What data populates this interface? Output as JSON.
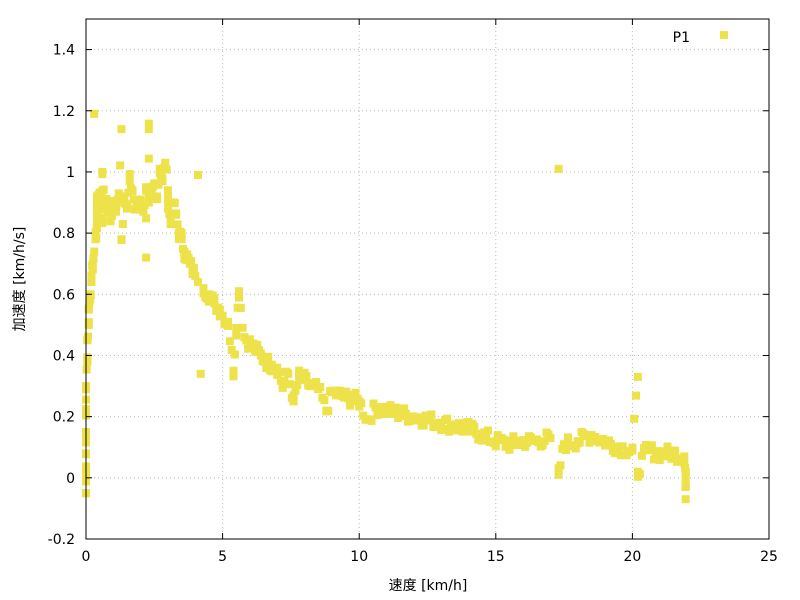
{
  "chart_data": {
    "type": "scatter",
    "title": "",
    "xlabel": "速度 [km/h]",
    "ylabel": "加速度 [km/h/s]",
    "xlim": [
      0,
      25
    ],
    "ylim": [
      -0.2,
      1.5
    ],
    "xticks": [
      "0",
      "5",
      "10",
      "15",
      "20",
      "25"
    ],
    "yticks": [
      "-0.2",
      "0",
      "0.2",
      "0.4",
      "0.6",
      "0.8",
      "1",
      "1.2",
      "1.4"
    ],
    "grid": true,
    "legend": {
      "position": "top-right",
      "entries": [
        "P1"
      ]
    },
    "series": [
      {
        "name": "P1",
        "color": "#ede24a",
        "marker": "square",
        "points": [
          [
            0.0,
            -0.05
          ],
          [
            0.0,
            0.02
          ],
          [
            0.0,
            0.08
          ],
          [
            0.0,
            0.15
          ],
          [
            0.0,
            0.22
          ],
          [
            0.0,
            0.3
          ],
          [
            0.05,
            0.38
          ],
          [
            0.05,
            0.45
          ],
          [
            0.1,
            0.5
          ],
          [
            0.1,
            0.55
          ],
          [
            0.15,
            0.6
          ],
          [
            0.2,
            0.64
          ],
          [
            0.25,
            0.7
          ],
          [
            0.3,
            0.74
          ],
          [
            0.35,
            0.78
          ],
          [
            0.4,
            0.82
          ],
          [
            0.4,
            0.86
          ],
          [
            0.5,
            0.88
          ],
          [
            0.6,
            0.85
          ],
          [
            0.7,
            0.9
          ],
          [
            0.3,
            1.19
          ],
          [
            0.4,
            0.92
          ],
          [
            0.5,
            0.93
          ],
          [
            0.6,
            1.0
          ],
          [
            0.8,
            0.88
          ],
          [
            0.9,
            0.84
          ],
          [
            1.0,
            0.9
          ],
          [
            1.1,
            0.87
          ],
          [
            1.2,
            0.93
          ],
          [
            1.3,
            1.14
          ],
          [
            1.3,
            0.78
          ],
          [
            1.4,
            0.92
          ],
          [
            1.5,
            0.88
          ],
          [
            1.6,
            0.97
          ],
          [
            1.7,
            0.94
          ],
          [
            1.8,
            0.88
          ],
          [
            1.9,
            0.9
          ],
          [
            2.0,
            0.91
          ],
          [
            2.1,
            0.87
          ],
          [
            2.2,
            0.95
          ],
          [
            2.2,
            0.72
          ],
          [
            2.3,
            1.14
          ],
          [
            2.3,
            0.9
          ],
          [
            2.4,
            0.93
          ],
          [
            2.5,
            0.96
          ],
          [
            2.6,
            0.92
          ],
          [
            2.7,
            1.01
          ],
          [
            2.8,
            0.97
          ],
          [
            2.9,
            1.03
          ],
          [
            3.0,
            0.94
          ],
          [
            3.0,
            0.88
          ],
          [
            3.1,
            0.85
          ],
          [
            3.2,
            0.9
          ],
          [
            3.3,
            0.86
          ],
          [
            3.4,
            0.8
          ],
          [
            3.5,
            0.78
          ],
          [
            3.6,
            0.74
          ],
          [
            3.7,
            0.72
          ],
          [
            3.8,
            0.7
          ],
          [
            3.9,
            0.68
          ],
          [
            4.0,
            0.66
          ],
          [
            4.1,
            0.99
          ],
          [
            4.1,
            0.64
          ],
          [
            4.2,
            0.34
          ],
          [
            4.3,
            0.62
          ],
          [
            4.5,
            0.6
          ],
          [
            4.7,
            0.57
          ],
          [
            4.9,
            0.55
          ],
          [
            5.0,
            0.53
          ],
          [
            5.2,
            0.51
          ],
          [
            5.4,
            0.35
          ],
          [
            5.5,
            0.49
          ],
          [
            5.6,
            0.61
          ],
          [
            5.8,
            0.46
          ],
          [
            6.0,
            0.44
          ],
          [
            6.2,
            0.42
          ],
          [
            6.4,
            0.4
          ],
          [
            6.6,
            0.38
          ],
          [
            6.8,
            0.37
          ],
          [
            7.0,
            0.36
          ],
          [
            7.2,
            0.3
          ],
          [
            7.4,
            0.34
          ],
          [
            7.6,
            0.25
          ],
          [
            7.8,
            0.33
          ],
          [
            8.0,
            0.32
          ],
          [
            8.2,
            0.3
          ],
          [
            8.5,
            0.29
          ],
          [
            8.8,
            0.22
          ],
          [
            9.0,
            0.28
          ],
          [
            9.3,
            0.27
          ],
          [
            9.6,
            0.26
          ],
          [
            10.0,
            0.25
          ],
          [
            10.3,
            0.19
          ],
          [
            10.6,
            0.23
          ],
          [
            11.0,
            0.22
          ],
          [
            11.5,
            0.21
          ],
          [
            12.0,
            0.2
          ],
          [
            12.5,
            0.19
          ],
          [
            13.0,
            0.18
          ],
          [
            13.5,
            0.17
          ],
          [
            14.0,
            0.16
          ],
          [
            14.5,
            0.14
          ],
          [
            15.0,
            0.12
          ],
          [
            15.5,
            0.11
          ],
          [
            16.0,
            0.12
          ],
          [
            16.5,
            0.12
          ],
          [
            17.0,
            0.13
          ],
          [
            17.3,
            1.01
          ],
          [
            17.3,
            0.01
          ],
          [
            17.5,
            0.11
          ],
          [
            18.0,
            0.12
          ],
          [
            18.5,
            0.14
          ],
          [
            19.0,
            0.12
          ],
          [
            19.5,
            0.1
          ],
          [
            20.0,
            0.09
          ],
          [
            20.2,
            0.33
          ],
          [
            20.2,
            0.02
          ],
          [
            20.5,
            0.09
          ],
          [
            21.0,
            0.08
          ],
          [
            21.5,
            0.08
          ],
          [
            21.9,
            0.07
          ],
          [
            21.95,
            0.02
          ],
          [
            21.95,
            -0.03
          ],
          [
            21.95,
            -0.07
          ]
        ]
      }
    ]
  }
}
